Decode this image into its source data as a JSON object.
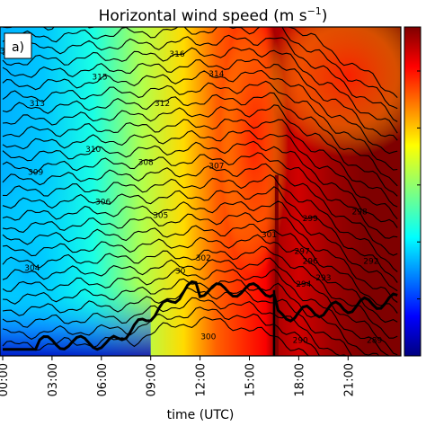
{
  "chart_data": {
    "type": "heatmap",
    "title": "Horizontal wind speed  (m s",
    "title_exponent": "−1",
    "title_close": ")",
    "panel_label": "a)",
    "xlabel": "time (UTC)",
    "x_ticks": [
      "00:00",
      "03:00",
      "06:00",
      "09:00",
      "12:00",
      "15:00",
      "18:00",
      "21:00"
    ],
    "x_range_hours": [
      0,
      24
    ],
    "colormap": "jet",
    "colorbar_visible": true,
    "colors": {
      "jet": [
        "#00007f",
        "#0000ff",
        "#007fff",
        "#00ffff",
        "#7fff7f",
        "#ffff00",
        "#ff7f00",
        "#ff0000",
        "#7f0000"
      ]
    },
    "contour_labels": [
      {
        "text": "317",
        "hour": 0.3,
        "level": 0.92
      },
      {
        "text": "316",
        "hour": 10.6,
        "level": 0.91
      },
      {
        "text": "315",
        "hour": 5.9,
        "level": 0.84
      },
      {
        "text": "314",
        "hour": 13.0,
        "level": 0.85
      },
      {
        "text": "313",
        "hour": 2.1,
        "level": 0.76
      },
      {
        "text": "312",
        "hour": 9.7,
        "level": 0.76
      },
      {
        "text": "310",
        "hour": 5.5,
        "level": 0.62
      },
      {
        "text": "309",
        "hour": 2.0,
        "level": 0.55
      },
      {
        "text": "308",
        "hour": 8.7,
        "level": 0.58
      },
      {
        "text": "307",
        "hour": 13.0,
        "level": 0.57
      },
      {
        "text": "306",
        "hour": 6.1,
        "level": 0.46
      },
      {
        "text": "305",
        "hour": 9.6,
        "level": 0.42
      },
      {
        "text": "304",
        "hour": 1.8,
        "level": 0.26
      },
      {
        "text": "302",
        "hour": 12.2,
        "level": 0.29
      },
      {
        "text": "301",
        "hour": 16.2,
        "level": 0.36
      },
      {
        "text": "30",
        "hour": 10.8,
        "level": 0.25
      },
      {
        "text": "300",
        "hour": 12.5,
        "level": 0.05
      },
      {
        "text": "299",
        "hour": 18.7,
        "level": 0.41
      },
      {
        "text": "298",
        "hour": 21.7,
        "level": 0.43
      },
      {
        "text": "297",
        "hour": 18.2,
        "level": 0.31
      },
      {
        "text": "296",
        "hour": 18.7,
        "level": 0.28
      },
      {
        "text": "293",
        "hour": 19.5,
        "level": 0.23
      },
      {
        "text": "294",
        "hour": 18.3,
        "level": 0.21
      },
      {
        "text": "292",
        "hour": 22.4,
        "level": 0.28
      },
      {
        "text": "290",
        "hour": 18.1,
        "level": 0.04
      },
      {
        "text": "289",
        "hour": 22.6,
        "level": 0.04
      }
    ]
  }
}
